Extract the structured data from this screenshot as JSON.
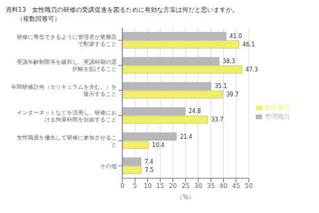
{
  "chart_data": {
    "type": "bar",
    "orientation": "horizontal",
    "title": "資料13　女性職員の研修の受講促進を図るために有効な方策は何だと思いますか。",
    "subtitle": "（複数回答可）",
    "categories": [
      "研修に専念できるように管理者が業務面\nで配慮すること",
      "受講年齢制限等を緩和し、受講時期の選\n択幅を拡げること",
      "年間研修計画（カリキュラムを含む。）を\n提示すること",
      "インターネットなどを活用し、研修にお\nける拘束時間を短縮すること",
      "女性職員を優先して研修に参加させるこ\nと",
      "その他"
    ],
    "series": [
      {
        "name": "管理職員",
        "color": "#b8b8b8",
        "values": [
          41.0,
          38.3,
          35.1,
          24.8,
          21.4,
          7.4
        ],
        "value_labels": [
          "41.0",
          "38.3",
          "35.1",
          "24.8",
          "21.4",
          "7.4"
        ]
      },
      {
        "name": "女性職員",
        "color": "#f0f060",
        "values": [
          46.1,
          47.3,
          39.7,
          33.7,
          10.4,
          7.5
        ]
      }
    ],
    "xlim": [
      0,
      50
    ],
    "xticks": [
      0,
      5,
      10,
      15,
      20,
      25,
      30,
      35,
      40,
      45,
      50
    ],
    "xlabel": "（%）",
    "grid": true,
    "legend": "right",
    "data_labels": true
  }
}
